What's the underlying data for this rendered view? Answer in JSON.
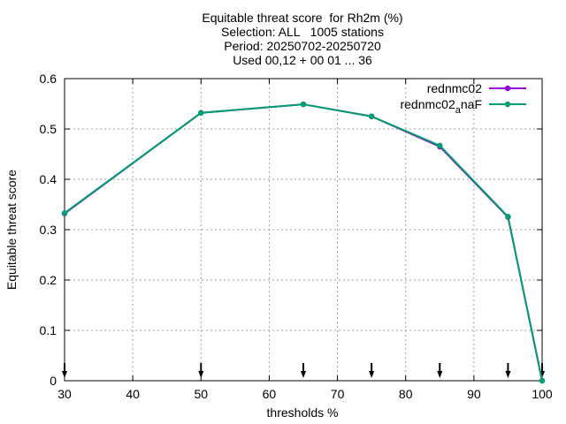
{
  "chart_data": {
    "type": "line",
    "title_lines": [
      "Equitable threat score  for Rh2m (%)",
      "Selection: ALL   1005 stations",
      "Period: 20250702-20250720",
      "Used 00,12 + 00 01 ... 36"
    ],
    "xlabel": "thresholds %",
    "ylabel": "Equitable threat score",
    "xlim": [
      30,
      100
    ],
    "ylim": [
      0,
      0.6
    ],
    "x_ticks": [
      30,
      40,
      50,
      60,
      70,
      80,
      90,
      100
    ],
    "y_ticks": [
      0,
      0.1,
      0.2,
      0.3,
      0.4,
      0.5,
      0.6
    ],
    "grid": true,
    "legend_position": "top-right",
    "series": [
      {
        "name": "rednmc02",
        "color": "#9400d3",
        "x": [
          30,
          50,
          65,
          75,
          85,
          95,
          100
        ],
        "values": [
          0.332,
          0.532,
          0.549,
          0.525,
          0.465,
          0.325,
          0.0
        ]
      },
      {
        "name": "rednmc02_anaF",
        "color": "#009e73",
        "x": [
          30,
          50,
          65,
          75,
          85,
          95,
          100
        ],
        "values": [
          0.333,
          0.532,
          0.549,
          0.525,
          0.467,
          0.326,
          0.0
        ]
      }
    ],
    "marker_arrows_x": [
      30,
      50,
      65,
      75,
      85,
      95,
      100
    ]
  }
}
